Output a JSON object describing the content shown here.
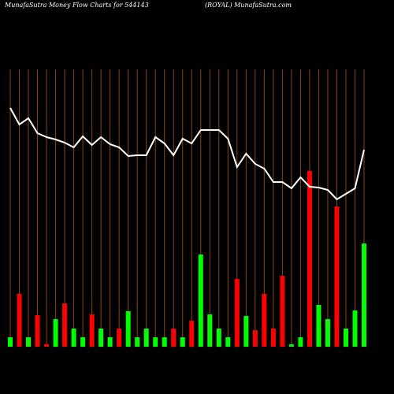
{
  "chart_data": {
    "type": "moneyflow",
    "title": "MunafaSutra  Money Flow  Charts for 544143",
    "subtitle": "(ROYAL) MunafaSutra.com",
    "categories": [
      null,
      null,
      null,
      null,
      null,
      null,
      null,
      null,
      null,
      null,
      null,
      null,
      null,
      null,
      null,
      null,
      null,
      null,
      null,
      null,
      null,
      null,
      null,
      null,
      null,
      null,
      null,
      null,
      null,
      null,
      null,
      null,
      null,
      null,
      null,
      null,
      null,
      null,
      null,
      null
    ],
    "values": [
      12,
      67,
      12,
      40,
      3,
      35,
      55,
      23,
      12,
      41,
      23,
      12,
      23,
      45,
      12,
      23,
      12,
      12,
      23,
      12,
      33,
      117,
      41,
      23,
      12,
      86,
      39,
      21,
      67,
      23,
      90,
      3,
      12,
      223,
      53,
      35,
      178,
      23,
      46,
      131
    ],
    "colors": [
      "#00ff00",
      "#ff0000",
      "#00ff00",
      "#ff0000",
      "#ff0000",
      "#00ff00",
      "#ff0000",
      "#00ff00",
      "#00ff00",
      "#ff0000",
      "#00ff00",
      "#00ff00",
      "#ff0000",
      "#00ff00",
      "#00ff00",
      "#00ff00",
      "#00ff00",
      "#00ff00",
      "#ff0000",
      "#00ff00",
      "#ff0000",
      "#00ff00",
      "#00ff00",
      "#00ff00",
      "#00ff00",
      "#ff0000",
      "#00ff00",
      "#ff0000",
      "#ff0000",
      "#ff0000",
      "#ff0000",
      "#00ff00",
      "#00ff00",
      "#ff0000",
      "#00ff00",
      "#00ff00",
      "#ff0000",
      "#00ff00",
      "#00ff00",
      "#00ff00"
    ],
    "line_values": [
      303,
      282,
      290,
      271,
      266,
      263,
      259,
      253,
      267,
      256,
      266,
      257,
      253,
      242,
      243,
      243,
      266,
      258,
      243,
      264,
      258,
      275,
      275,
      275,
      264,
      228,
      245,
      232,
      226,
      209,
      209,
      201,
      215,
      203,
      202,
      199,
      187,
      194,
      201,
      250
    ],
    "line_color": "#ffffff",
    "grid_color": "#8b4513",
    "ylim": [
      0,
      440
    ]
  }
}
